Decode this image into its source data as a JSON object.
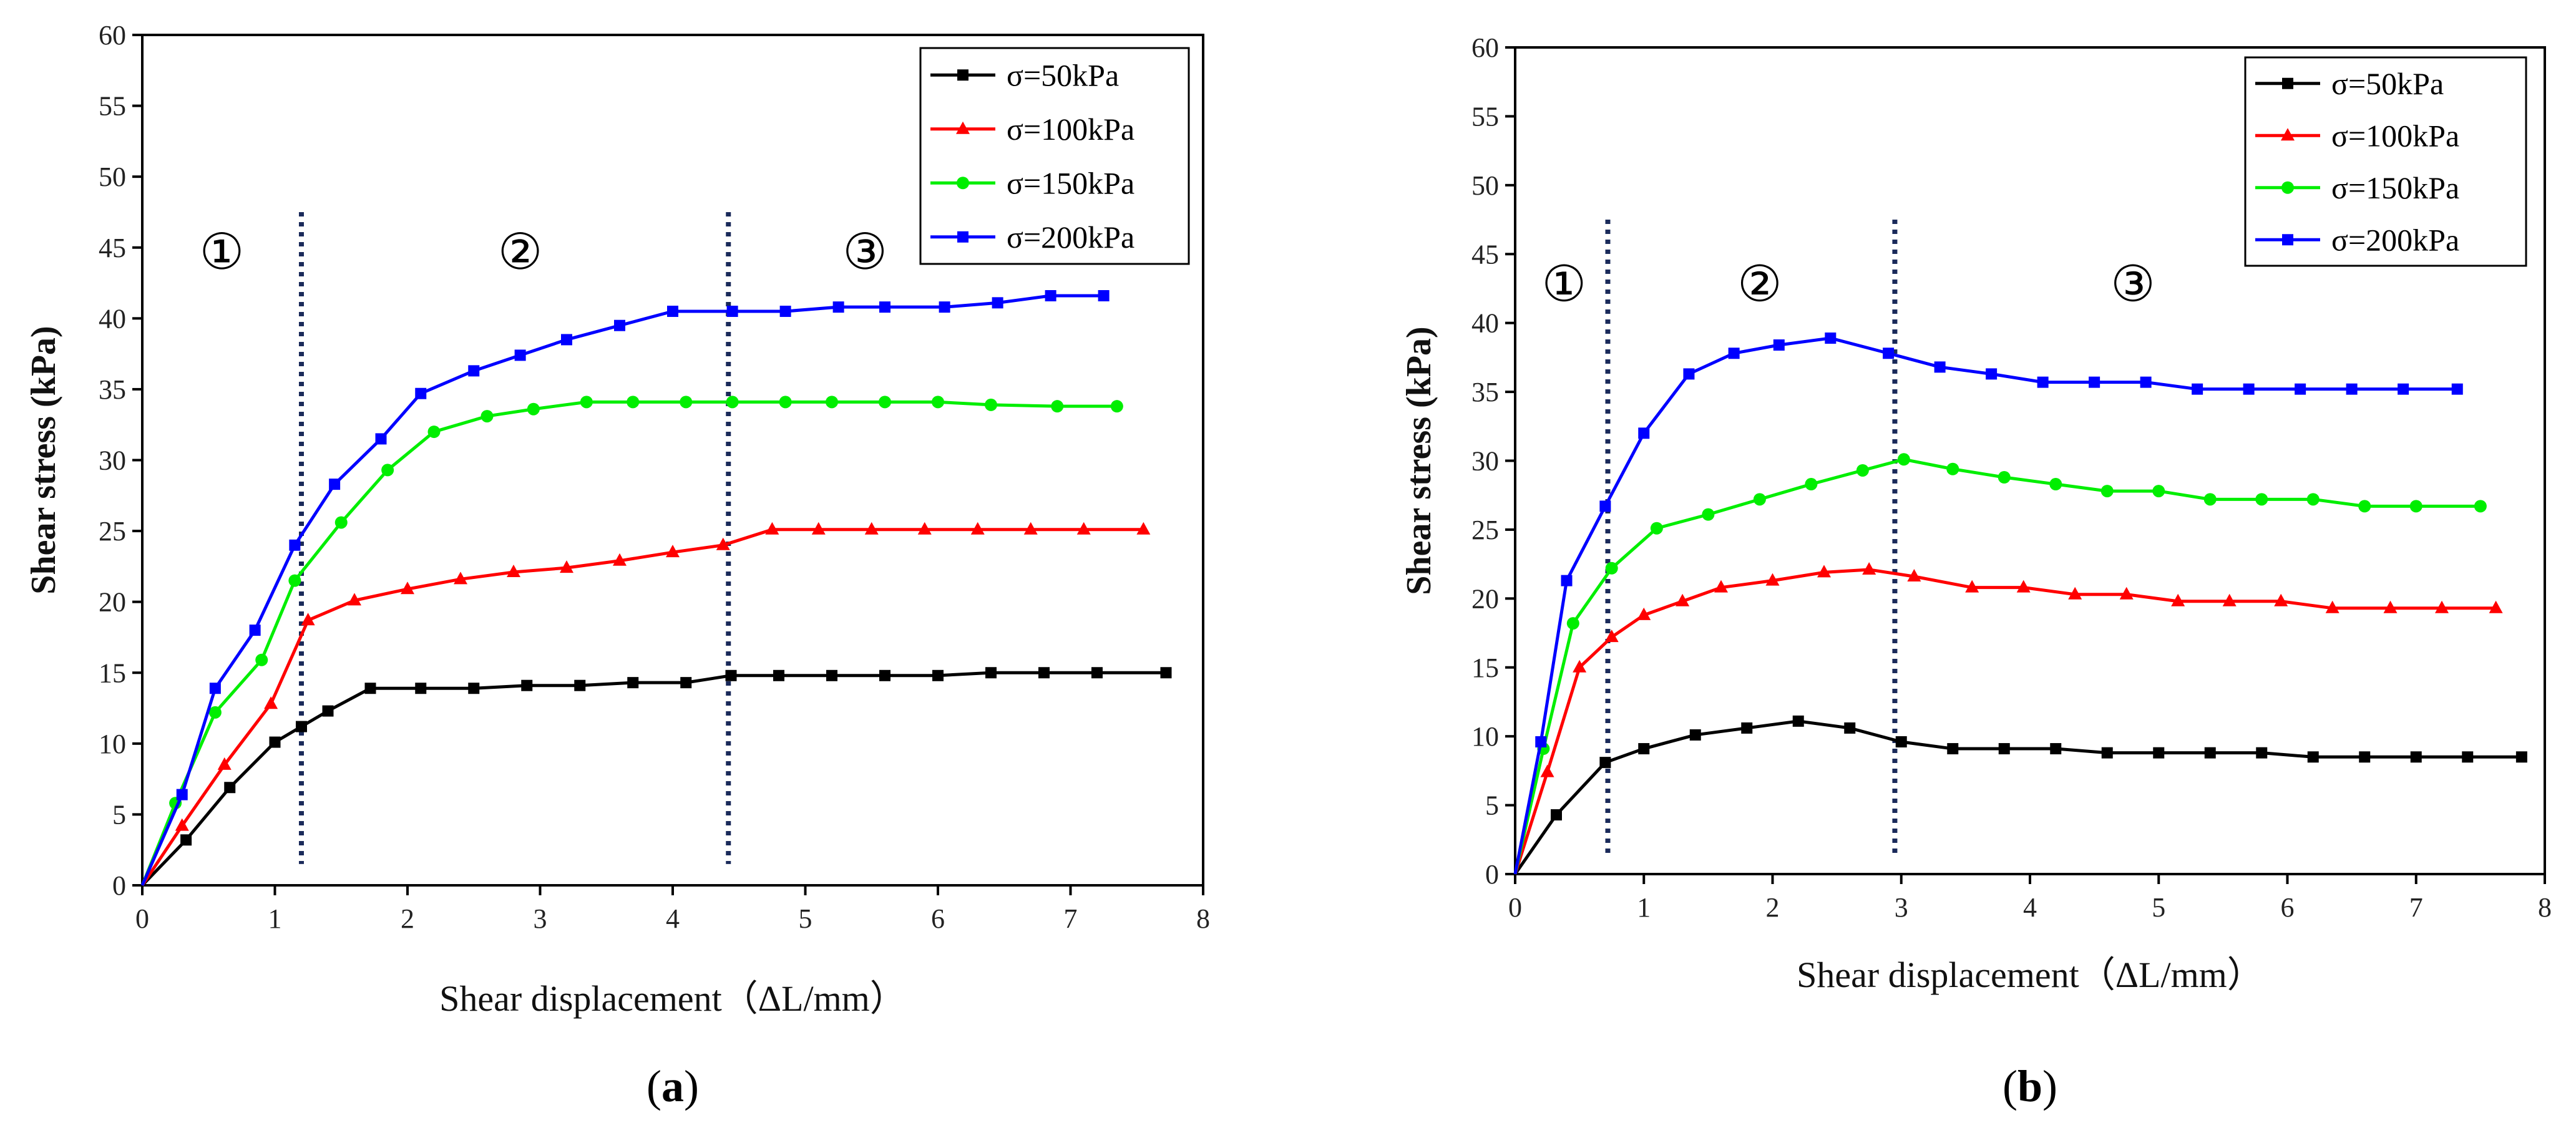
{
  "chart_data": [
    {
      "panel": "a",
      "caption": {
        "open": "(",
        "letter": "a",
        "close": ")"
      },
      "type": "line",
      "title": "",
      "xlabel": "Shear displacement（ΔL/mm）",
      "ylabel": "Shear stress (kPa)",
      "xlim": [
        0,
        8
      ],
      "ylim": [
        0,
        60
      ],
      "xticks": [
        0,
        1,
        2,
        3,
        4,
        5,
        6,
        7,
        8
      ],
      "yticks": [
        0,
        5,
        10,
        15,
        20,
        25,
        30,
        35,
        40,
        45,
        50,
        55,
        60
      ],
      "grid": false,
      "legend_position": "top-right",
      "dividers": [
        1.2,
        4.42
      ],
      "regions": [
        {
          "label": "①",
          "x": 0.6,
          "y": 43.5
        },
        {
          "label": "②",
          "x": 2.85,
          "y": 43.5
        },
        {
          "label": "③",
          "x": 5.45,
          "y": 43.5
        }
      ],
      "series": [
        {
          "name": "σ=50kPa",
          "color": "#000000",
          "marker": "square",
          "x": [
            0,
            0.33,
            0.66,
            1.0,
            1.2,
            1.4,
            1.72,
            2.1,
            2.5,
            2.9,
            3.3,
            3.7,
            4.1,
            4.44,
            4.8,
            5.2,
            5.6,
            6.0,
            6.4,
            6.8,
            7.2,
            7.72
          ],
          "y": [
            0,
            3.2,
            6.9,
            10.1,
            11.2,
            12.3,
            13.9,
            13.9,
            13.9,
            14.1,
            14.1,
            14.3,
            14.3,
            14.8,
            14.8,
            14.8,
            14.8,
            14.8,
            15.0,
            15.0,
            15.0,
            15.0
          ]
        },
        {
          "name": "σ=100kPa",
          "color": "#ff0000",
          "marker": "triangle",
          "x": [
            0,
            0.3,
            0.62,
            0.97,
            1.25,
            1.6,
            2.0,
            2.4,
            2.8,
            3.2,
            3.6,
            4.0,
            4.38,
            4.75,
            5.1,
            5.5,
            5.9,
            6.3,
            6.7,
            7.1,
            7.55
          ],
          "y": [
            0,
            4.2,
            8.5,
            12.8,
            18.7,
            20.1,
            20.9,
            21.6,
            22.1,
            22.4,
            22.9,
            23.5,
            24.0,
            25.1,
            25.1,
            25.1,
            25.1,
            25.1,
            25.1,
            25.1,
            25.1
          ]
        },
        {
          "name": "σ=150kPa",
          "color": "#00ee00",
          "marker": "circle",
          "x": [
            0,
            0.25,
            0.55,
            0.9,
            1.15,
            1.5,
            1.85,
            2.2,
            2.6,
            2.95,
            3.35,
            3.7,
            4.1,
            4.45,
            4.85,
            5.2,
            5.6,
            6.0,
            6.4,
            6.9,
            7.35
          ],
          "y": [
            0,
            5.8,
            12.2,
            15.9,
            21.5,
            25.6,
            29.3,
            32.0,
            33.1,
            33.6,
            34.1,
            34.1,
            34.1,
            34.1,
            34.1,
            34.1,
            34.1,
            34.1,
            33.9,
            33.8,
            33.8
          ]
        },
        {
          "name": "σ=200kPa",
          "color": "#0000ff",
          "marker": "square",
          "x": [
            0,
            0.3,
            0.55,
            0.85,
            1.15,
            1.45,
            1.8,
            2.1,
            2.5,
            2.85,
            3.2,
            3.6,
            4.0,
            4.45,
            4.85,
            5.25,
            5.6,
            6.05,
            6.45,
            6.85,
            7.25
          ],
          "y": [
            0,
            6.4,
            13.9,
            18.0,
            24.0,
            28.3,
            31.5,
            34.7,
            36.3,
            37.4,
            38.5,
            39.5,
            40.5,
            40.5,
            40.5,
            40.8,
            40.8,
            40.8,
            41.1,
            41.6,
            41.6
          ]
        }
      ]
    },
    {
      "panel": "b",
      "caption": {
        "open": "(",
        "letter": "b",
        "close": ")"
      },
      "type": "line",
      "title": "",
      "xlabel": "Shear displacement（ΔL/mm）",
      "ylabel": "Shear stress (kPa)",
      "xlim": [
        0,
        8
      ],
      "ylim": [
        0,
        60
      ],
      "xticks": [
        0,
        1,
        2,
        3,
        4,
        5,
        6,
        7,
        8
      ],
      "yticks": [
        0,
        5,
        10,
        15,
        20,
        25,
        30,
        35,
        40,
        45,
        50,
        55,
        60
      ],
      "grid": false,
      "legend_position": "top-right",
      "dividers": [
        0.72,
        2.95
      ],
      "regions": [
        {
          "label": "①",
          "x": 0.38,
          "y": 41.6
        },
        {
          "label": "②",
          "x": 1.9,
          "y": 41.6
        },
        {
          "label": "③",
          "x": 4.8,
          "y": 41.6
        }
      ],
      "series": [
        {
          "name": "σ=50kPa",
          "color": "#000000",
          "marker": "square",
          "x": [
            0,
            0.32,
            0.7,
            1.0,
            1.4,
            1.8,
            2.2,
            2.6,
            3.0,
            3.4,
            3.8,
            4.2,
            4.6,
            5.0,
            5.4,
            5.8,
            6.2,
            6.6,
            7.0,
            7.4,
            7.82
          ],
          "y": [
            0,
            4.3,
            8.1,
            9.1,
            10.1,
            10.6,
            11.1,
            10.6,
            9.6,
            9.1,
            9.1,
            9.1,
            8.8,
            8.8,
            8.8,
            8.8,
            8.5,
            8.5,
            8.5,
            8.5,
            8.5
          ]
        },
        {
          "name": "σ=100kPa",
          "color": "#ff0000",
          "marker": "triangle",
          "x": [
            0,
            0.25,
            0.5,
            0.75,
            1.0,
            1.3,
            1.6,
            2.0,
            2.4,
            2.75,
            3.1,
            3.55,
            3.95,
            4.35,
            4.75,
            5.15,
            5.55,
            5.95,
            6.35,
            6.8,
            7.2,
            7.62
          ],
          "y": [
            0,
            7.4,
            15.0,
            17.2,
            18.8,
            19.8,
            20.8,
            21.3,
            21.9,
            22.1,
            21.6,
            20.8,
            20.8,
            20.3,
            20.3,
            19.8,
            19.8,
            19.8,
            19.3,
            19.3,
            19.3,
            19.3
          ]
        },
        {
          "name": "σ=150kPa",
          "color": "#00ee00",
          "marker": "circle",
          "x": [
            0,
            0.22,
            0.45,
            0.75,
            1.1,
            1.5,
            1.9,
            2.3,
            2.7,
            3.02,
            3.4,
            3.8,
            4.2,
            4.6,
            5.0,
            5.4,
            5.8,
            6.2,
            6.6,
            7.0,
            7.5
          ],
          "y": [
            0,
            9.1,
            18.2,
            22.2,
            25.1,
            26.1,
            27.2,
            28.3,
            29.3,
            30.1,
            29.4,
            28.8,
            28.3,
            27.8,
            27.8,
            27.2,
            27.2,
            27.2,
            26.7,
            26.7,
            26.7
          ]
        },
        {
          "name": "σ=200kPa",
          "color": "#0000ff",
          "marker": "square",
          "x": [
            0,
            0.2,
            0.4,
            0.7,
            1.0,
            1.35,
            1.7,
            2.05,
            2.45,
            2.9,
            3.3,
            3.7,
            4.1,
            4.5,
            4.9,
            5.3,
            5.7,
            6.1,
            6.5,
            6.9,
            7.32
          ],
          "y": [
            0,
            9.6,
            21.3,
            26.7,
            32.0,
            36.3,
            37.8,
            38.4,
            38.9,
            37.8,
            36.8,
            36.3,
            35.7,
            35.7,
            35.7,
            35.2,
            35.2,
            35.2,
            35.2,
            35.2,
            35.2
          ]
        }
      ]
    }
  ]
}
